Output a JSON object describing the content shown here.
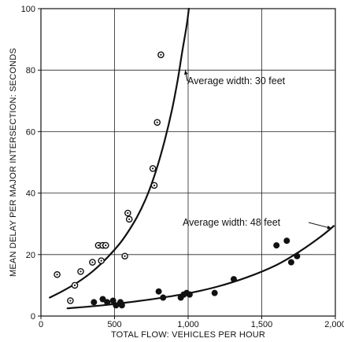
{
  "chart_data": {
    "type": "scatter",
    "title": "",
    "xlabel": "TOTAL FLOW: VEHICLES PER HOUR",
    "ylabel": "MEAN DELAY PER MAJOR INTERSECTION: SECONDS",
    "xlim": [
      0,
      2000
    ],
    "ylim": [
      0,
      100
    ],
    "x_ticks": [
      0,
      500,
      1000,
      1500,
      2000
    ],
    "x_tick_labels": [
      "0",
      "500",
      "1,000",
      "1,500",
      "2,000"
    ],
    "y_ticks": [
      0,
      20,
      40,
      60,
      80,
      100
    ],
    "y_tick_labels": [
      "0",
      "20",
      "40",
      "60",
      "80",
      "100"
    ],
    "grid": true,
    "series": [
      {
        "name": "Average width: 30 feet",
        "marker": "open-circle",
        "points": [
          [
            110,
            13.5
          ],
          [
            200,
            5
          ],
          [
            230,
            10
          ],
          [
            270,
            14.5
          ],
          [
            350,
            17.5
          ],
          [
            390,
            23
          ],
          [
            410,
            18
          ],
          [
            420,
            23
          ],
          [
            440,
            23
          ],
          [
            570,
            19.5
          ],
          [
            590,
            33.5
          ],
          [
            600,
            31.5
          ],
          [
            760,
            48
          ],
          [
            770,
            42.5
          ],
          [
            790,
            63
          ],
          [
            815,
            85
          ]
        ],
        "curve": [
          [
            60,
            6
          ],
          [
            150,
            8.2
          ],
          [
            250,
            11
          ],
          [
            350,
            14.5
          ],
          [
            450,
            19
          ],
          [
            550,
            24.5
          ],
          [
            650,
            32
          ],
          [
            720,
            39
          ],
          [
            780,
            47
          ],
          [
            840,
            57
          ],
          [
            890,
            67
          ],
          [
            930,
            77
          ],
          [
            960,
            86
          ],
          [
            990,
            94.5
          ],
          [
            1005,
            100
          ]
        ]
      },
      {
        "name": "Average width: 48 feet",
        "marker": "filled-circle",
        "points": [
          [
            360,
            4.5
          ],
          [
            420,
            5.5
          ],
          [
            450,
            4.5
          ],
          [
            490,
            5
          ],
          [
            510,
            3.5
          ],
          [
            540,
            4.5
          ],
          [
            550,
            3.5
          ],
          [
            800,
            8
          ],
          [
            830,
            6
          ],
          [
            950,
            6
          ],
          [
            970,
            7
          ],
          [
            990,
            7.5
          ],
          [
            1010,
            7
          ],
          [
            1180,
            7.5
          ],
          [
            1310,
            12
          ],
          [
            1600,
            23
          ],
          [
            1670,
            24.5
          ],
          [
            1700,
            17.5
          ],
          [
            1740,
            19.5
          ]
        ],
        "curve": [
          [
            180,
            2.5
          ],
          [
            400,
            3.4
          ],
          [
            600,
            4.5
          ],
          [
            800,
            5.8
          ],
          [
            1000,
            7.4
          ],
          [
            1200,
            9.6
          ],
          [
            1400,
            12.6
          ],
          [
            1600,
            16.6
          ],
          [
            1750,
            20.8
          ],
          [
            1900,
            25.8
          ],
          [
            1990,
            29.3
          ]
        ]
      }
    ],
    "annotations": [
      {
        "text": "Average width: 30 feet",
        "series": 0
      },
      {
        "text": "Average width: 48 feet",
        "series": 1
      }
    ]
  }
}
